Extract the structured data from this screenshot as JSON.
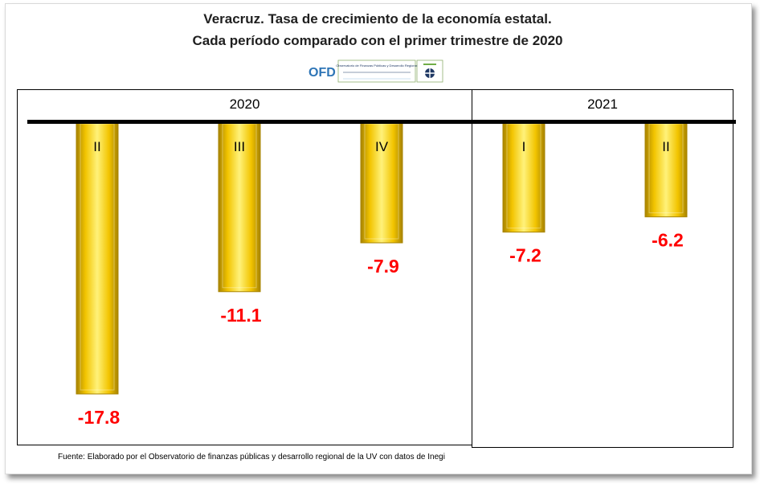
{
  "title": {
    "line1": "Veracruz. Tasa de crecimiento de la economía estatal.",
    "line2": "Cada período comparado con el  primer trimestre de 2020"
  },
  "logo": {
    "text": "OFD",
    "caption": "Observatorio de Finanzas Públicas y Desarrollo Regional"
  },
  "source": "Fuente: Elaborado por el Observatorio de  finanzas públicas y desarrollo regional de la UV con datos de Inegi",
  "colors": {
    "bar": "#f2c400",
    "bar_dark": "#a88400",
    "bar_light": "#fff27a",
    "value_label": "#ff0000",
    "logo_text": "#2e75b6"
  },
  "chart_data": {
    "type": "bar",
    "title": "Veracruz. Tasa de crecimiento de la economía estatal. Cada período comparado con el  primer trimestre de 2020",
    "groups": [
      {
        "name": "2020",
        "categories": [
          "II",
          "III",
          "IV"
        ]
      },
      {
        "name": "2021",
        "categories": [
          "I",
          "II"
        ]
      }
    ],
    "categories": [
      "II",
      "III",
      "IV",
      "I",
      "II"
    ],
    "values": [
      -17.8,
      -11.1,
      -7.9,
      -7.2,
      -6.2
    ],
    "labels": [
      "-17.8",
      "-11.1",
      "-7.9",
      "-7.2",
      "-6.2"
    ],
    "ylim": [
      -17.8,
      0
    ],
    "xlabel": "",
    "ylabel": "",
    "grid": false,
    "legend": "none"
  }
}
